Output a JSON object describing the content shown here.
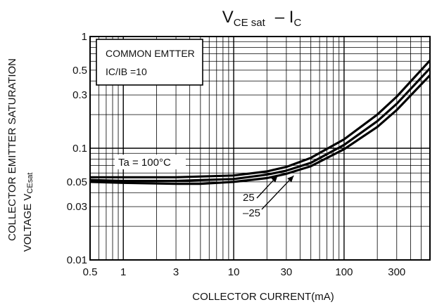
{
  "chart_data": {
    "type": "line",
    "title": {
      "main": "V",
      "main_sub": "CE sat",
      "dash": "– I",
      "dash_sub": "C"
    },
    "xlabel": "COLLECTOR CURRENT(mA)",
    "ylabel_line1": "COLLECTOR EMITTER SATURATION",
    "ylabel_line2": "VOLTAGE V",
    "ylabel_line2_sub": "CEsat",
    "x_scale": "log",
    "y_scale": "log",
    "xlim": [
      0.5,
      600
    ],
    "ylim": [
      0.01,
      1
    ],
    "x_ticks": [
      {
        "v": 0.5,
        "label": "0.5"
      },
      {
        "v": 1,
        "label": "1"
      },
      {
        "v": 3,
        "label": "3"
      },
      {
        "v": 10,
        "label": "10"
      },
      {
        "v": 30,
        "label": "30"
      },
      {
        "v": 100,
        "label": "100"
      },
      {
        "v": 300,
        "label": "300"
      }
    ],
    "y_ticks": [
      {
        "v": 0.01,
        "label": "0.01"
      },
      {
        "v": 0.03,
        "label": "0.03"
      },
      {
        "v": 0.05,
        "label": "0.05"
      },
      {
        "v": 0.1,
        "label": "0.1"
      },
      {
        "v": 0.3,
        "label": "0.3"
      },
      {
        "v": 0.5,
        "label": "0.5"
      },
      {
        "v": 1,
        "label": "1"
      }
    ],
    "grid": true,
    "condition_box": {
      "line1": "COMMON EMTTER",
      "line2": "IC/IB =10"
    },
    "series": [
      {
        "name": "Ta = 100°C",
        "x": [
          0.5,
          1,
          3,
          10,
          20,
          30,
          50,
          100,
          200,
          300,
          600
        ],
        "y": [
          0.055,
          0.055,
          0.055,
          0.057,
          0.062,
          0.068,
          0.082,
          0.12,
          0.2,
          0.29,
          0.61
        ]
      },
      {
        "name": "25",
        "x": [
          0.5,
          1,
          3,
          10,
          20,
          30,
          50,
          100,
          200,
          300,
          600
        ],
        "y": [
          0.052,
          0.051,
          0.051,
          0.053,
          0.058,
          0.063,
          0.074,
          0.107,
          0.175,
          0.25,
          0.52
        ]
      },
      {
        "name": "–25",
        "x": [
          0.5,
          1,
          3,
          5,
          10,
          20,
          30,
          50,
          100,
          200,
          300,
          600
        ],
        "y": [
          0.05,
          0.049,
          0.048,
          0.048,
          0.05,
          0.054,
          0.059,
          0.069,
          0.098,
          0.155,
          0.22,
          0.45
        ]
      }
    ],
    "annotations": [
      {
        "text": "Ta = 100°C",
        "series": "Ta = 100°C"
      },
      {
        "text": "25",
        "series": "25"
      },
      {
        "text": "–25",
        "series": "–25"
      }
    ]
  }
}
